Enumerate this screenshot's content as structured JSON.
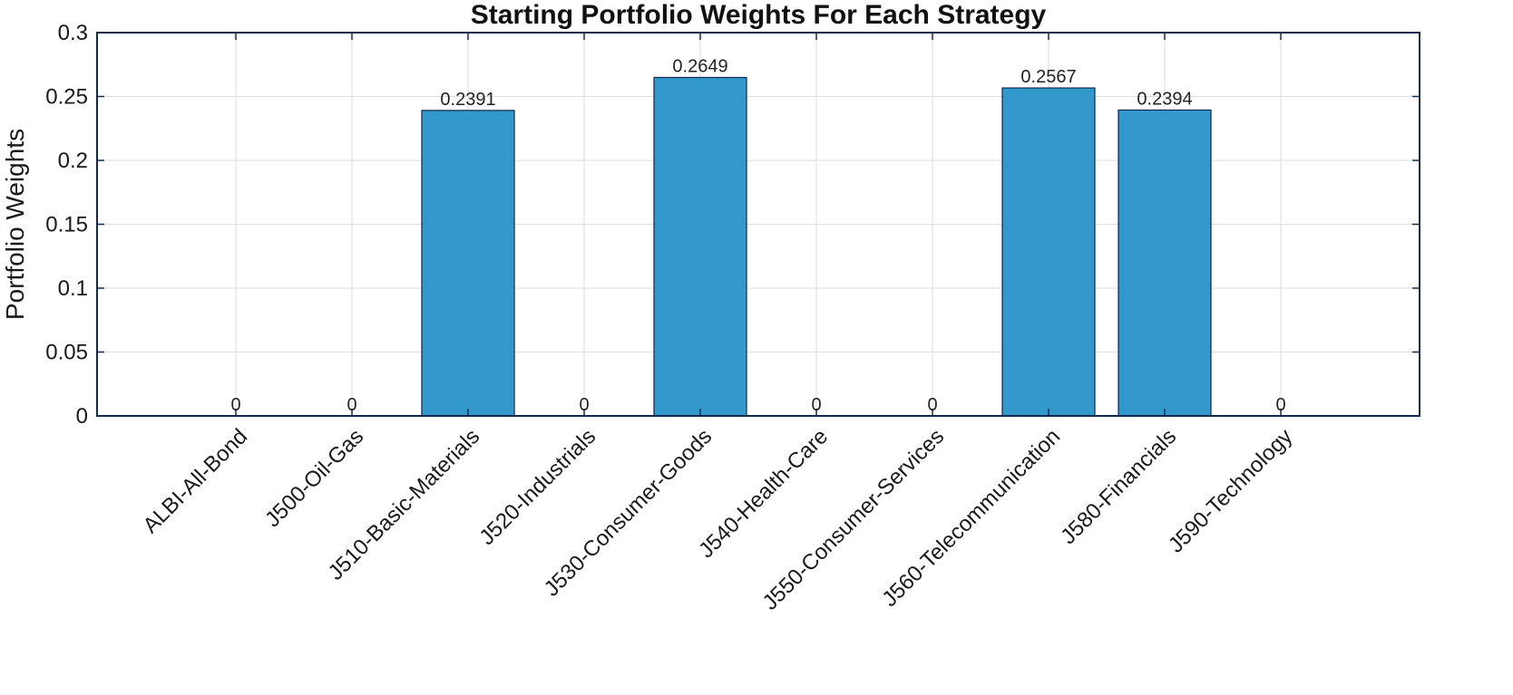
{
  "chart_data": {
    "type": "bar",
    "title": "Starting Portfolio Weights For Each Strategy",
    "xlabel": "",
    "ylabel": "Portfolio Weights",
    "categories": [
      "ALBI-All-Bond",
      "J500-Oil-Gas",
      "J510-Basic-Materials",
      "J520-Industrials",
      "J530-Consumer-Goods",
      "J540-Health-Care",
      "J550-Consumer-Services",
      "J560-Telecommunication",
      "J580-Financials",
      "J590-Technology"
    ],
    "values": [
      0,
      0,
      0.2391,
      0,
      0.2649,
      0,
      0,
      0.2567,
      0.2394,
      0
    ],
    "data_labels": [
      "0",
      "0",
      "0.2391",
      "0",
      "0.2649",
      "0",
      "0",
      "0.2567",
      "0.2394",
      "0"
    ],
    "ylim": [
      0,
      0.3
    ],
    "yticks": [
      0,
      0.05,
      0.1,
      0.15,
      0.2,
      0.25,
      0.3
    ],
    "ytick_labels": [
      "0",
      "0.05",
      "0.1",
      "0.15",
      "0.2",
      "0.25",
      "0.3"
    ],
    "grid": true,
    "legend": "none",
    "colors": {
      "bar": "#3398cc",
      "bar_edge": "#0f2a4e",
      "axis": "#0f2a4e",
      "grid": "#dedede"
    }
  }
}
